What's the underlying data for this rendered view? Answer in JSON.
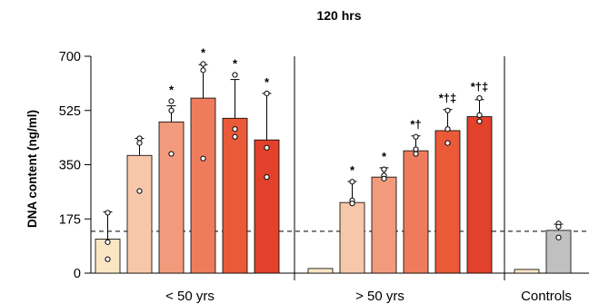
{
  "chart_data": {
    "type": "bar",
    "title": "120 hrs",
    "ylabel": "DNA content (ng/ml)",
    "xlabel": "",
    "ylim": [
      0,
      700
    ],
    "yticks": [
      0,
      175,
      350,
      525,
      700
    ],
    "reference_line": 135,
    "groups": [
      {
        "name": "< 50 yrs",
        "bars": [
          {
            "value": 110,
            "err": 88,
            "points": [
              195,
              100,
              45
            ],
            "sig": "",
            "color": "#fbe6c4"
          },
          {
            "value": 380,
            "err": 55,
            "points": [
              435,
              420,
              265
            ],
            "sig": "",
            "color": "#f7c7ab"
          },
          {
            "value": 488,
            "err": 52,
            "points": [
              555,
              525,
              385
            ],
            "sig": "*",
            "color": "#f29b7c"
          },
          {
            "value": 565,
            "err": 108,
            "points": [
              675,
              655,
              370
            ],
            "sig": "*",
            "color": "#ee7c5c"
          },
          {
            "value": 500,
            "err": 125,
            "points": [
              640,
              465,
              440
            ],
            "sig": "*",
            "color": "#ea5a38"
          },
          {
            "value": 430,
            "err": 150,
            "points": [
              580,
              405,
              310
            ],
            "sig": "*",
            "color": "#e2412c"
          }
        ]
      },
      {
        "name": "> 50 yrs",
        "bars": [
          {
            "value": 15,
            "err": 0,
            "points": [],
            "sig": "",
            "color": "#fbe6c4"
          },
          {
            "value": 228,
            "err": 68,
            "points": [
              295,
              235,
              225
            ],
            "sig": "*",
            "color": "#f7c7ab"
          },
          {
            "value": 310,
            "err": 30,
            "points": [
              335,
              315,
              305
            ],
            "sig": "*",
            "color": "#f29b7c"
          },
          {
            "value": 395,
            "err": 48,
            "points": [
              440,
              400,
              385
            ],
            "sig": "*†",
            "color": "#ee7c5c"
          },
          {
            "value": 460,
            "err": 68,
            "points": [
              525,
              465,
              420
            ],
            "sig": "*†‡",
            "color": "#ea5a38"
          },
          {
            "value": 505,
            "err": 55,
            "points": [
              565,
              510,
              490
            ],
            "sig": "*†‡",
            "color": "#e2412c"
          }
        ]
      },
      {
        "name": "Controls",
        "bars": [
          {
            "value": 12,
            "err": 0,
            "points": [],
            "sig": "",
            "color": "#fbe6c4"
          },
          {
            "value": 138,
            "err": 20,
            "points": [
              160,
              150,
              115
            ],
            "sig": "",
            "color": "#c0c0c0"
          }
        ]
      }
    ]
  }
}
